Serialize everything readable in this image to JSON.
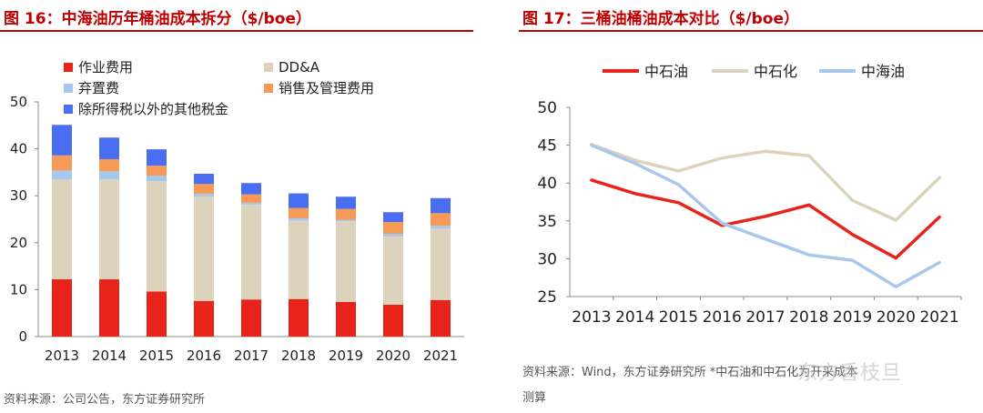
{
  "left": {
    "title": "图 16：中海油历年桶油成本拆分（$/boe）",
    "source": "资料来源：公司公告，东方证券研究所",
    "chart_data": {
      "type": "bar",
      "stacked": true,
      "categories": [
        "2013",
        "2014",
        "2015",
        "2016",
        "2017",
        "2018",
        "2019",
        "2020",
        "2021"
      ],
      "ylim": [
        0,
        50
      ],
      "yticks": [
        0,
        10,
        20,
        30,
        40,
        50
      ],
      "grid": false,
      "legend_position": "top",
      "series": [
        {
          "name": "作业费用",
          "color": "#e8231c",
          "values": [
            12.2,
            12.2,
            9.6,
            7.6,
            7.9,
            8.0,
            7.4,
            6.8,
            7.8
          ]
        },
        {
          "name": "DD&A",
          "color": "#ddd3bd",
          "values": [
            21.2,
            21.3,
            23.5,
            22.2,
            20.2,
            16.7,
            17.2,
            14.5,
            15.2
          ]
        },
        {
          "name": "弃置费",
          "color": "#a7c8ec",
          "values": [
            2.0,
            1.7,
            1.2,
            0.6,
            0.4,
            0.5,
            0.3,
            0.6,
            0.6
          ]
        },
        {
          "name": "销售及管理费用",
          "color": "#f79a57",
          "values": [
            3.2,
            2.6,
            2.1,
            2.1,
            1.8,
            2.2,
            2.3,
            2.5,
            2.7
          ]
        },
        {
          "name": "除所得税以外的其他税金",
          "color": "#4a6ef2",
          "values": [
            6.5,
            4.6,
            3.5,
            2.2,
            2.4,
            3.1,
            2.6,
            2.1,
            3.2
          ]
        }
      ]
    }
  },
  "right": {
    "title": "图 17：三桶油桶油成本对比（$/boe）",
    "source_line1": "资料来源：Wind，东方证券研究所 *中石油和中石化为开采成本",
    "source_line2": "测算",
    "watermark": "东方香枝旦",
    "chart_data": {
      "type": "line",
      "x": [
        "2013",
        "2014",
        "2015",
        "2016",
        "2017",
        "2018",
        "2019",
        "2020",
        "2021"
      ],
      "ylim": [
        25,
        50
      ],
      "yticks": [
        25,
        30,
        35,
        40,
        45,
        50
      ],
      "grid": false,
      "legend_position": "top",
      "series": [
        {
          "name": "中石油",
          "color": "#e8231c",
          "values": [
            40.4,
            38.6,
            37.4,
            34.4,
            35.6,
            37.1,
            33.2,
            30.1,
            35.5
          ]
        },
        {
          "name": "中石化",
          "color": "#ddd3bd",
          "values": [
            45.1,
            43.0,
            41.6,
            43.3,
            44.2,
            43.6,
            37.7,
            35.1,
            40.7
          ]
        },
        {
          "name": "中海油",
          "color": "#a7c8ec",
          "values": [
            45.0,
            42.6,
            39.8,
            34.7,
            32.6,
            30.5,
            29.8,
            26.3,
            29.5
          ]
        }
      ]
    }
  }
}
